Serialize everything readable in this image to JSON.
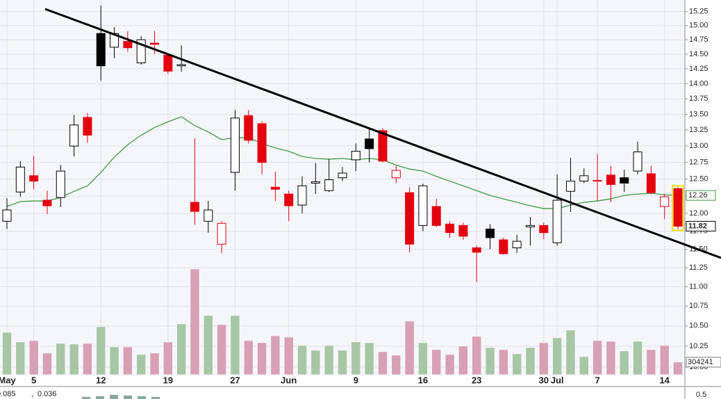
{
  "chart_data": {
    "type": "candlestick",
    "categories": [
      "May",
      null,
      "5",
      null,
      null,
      null,
      null,
      "12",
      null,
      null,
      null,
      null,
      "19",
      null,
      null,
      null,
      null,
      "27",
      null,
      null,
      null,
      "Jun",
      null,
      null,
      null,
      null,
      "9",
      null,
      null,
      null,
      null,
      "16",
      null,
      null,
      null,
      "23",
      null,
      null,
      null,
      null,
      "30",
      "Jul",
      null,
      null,
      "7",
      null,
      null,
      null,
      null,
      "14",
      null
    ],
    "open": [
      11.89,
      12.31,
      12.55,
      12.19,
      12.23,
      13.0,
      13.45,
      14.86,
      14.62,
      14.72,
      14.35,
      14.69,
      14.48,
      14.3,
      12.16,
      11.89,
      11.57,
      12.6,
      13.48,
      13.35,
      12.38,
      12.28,
      12.12,
      12.44,
      12.33,
      12.52,
      12.79,
      13.11,
      13.24,
      12.52,
      12.3,
      11.83,
      12.1,
      11.85,
      11.83,
      11.52,
      11.78,
      11.63,
      11.52,
      11.81,
      11.83,
      11.59,
      12.32,
      12.47,
      12.48,
      12.56,
      12.52,
      12.62,
      12.58,
      12.1,
      12.36
    ],
    "high": [
      12.22,
      12.77,
      12.85,
      12.33,
      12.71,
      13.49,
      13.52,
      15.36,
      14.97,
      14.9,
      14.81,
      14.9,
      14.51,
      14.65,
      13.12,
      12.18,
      11.89,
      13.57,
      13.57,
      13.39,
      12.61,
      12.33,
      12.54,
      12.74,
      12.8,
      12.68,
      13.04,
      13.28,
      13.28,
      12.7,
      12.38,
      12.43,
      12.21,
      11.89,
      11.87,
      11.55,
      11.85,
      11.66,
      11.7,
      11.95,
      11.87,
      12.57,
      12.82,
      12.66,
      12.88,
      12.7,
      12.64,
      13.07,
      12.7,
      12.28,
      12.38
    ],
    "low": [
      11.78,
      12.24,
      12.35,
      11.99,
      12.09,
      12.84,
      13.05,
      14.05,
      14.43,
      14.54,
      14.32,
      14.5,
      14.16,
      14.2,
      11.84,
      11.73,
      11.45,
      12.33,
      13.04,
      12.57,
      12.18,
      11.89,
      12.0,
      12.28,
      12.31,
      12.47,
      12.62,
      12.75,
      12.75,
      12.44,
      11.46,
      11.75,
      11.81,
      11.66,
      11.63,
      11.06,
      11.5,
      11.43,
      11.45,
      11.55,
      11.64,
      11.55,
      12.02,
      12.44,
      12.18,
      12.16,
      12.31,
      12.57,
      12.28,
      11.92,
      11.78
    ],
    "close": [
      12.05,
      12.68,
      12.47,
      12.11,
      12.62,
      13.33,
      13.17,
      14.3,
      14.86,
      14.61,
      14.75,
      14.67,
      14.21,
      14.32,
      12.03,
      12.05,
      11.86,
      13.44,
      13.09,
      12.75,
      12.35,
      12.11,
      12.4,
      12.46,
      12.49,
      12.59,
      12.92,
      12.96,
      12.77,
      12.63,
      11.57,
      12.4,
      11.83,
      11.73,
      11.68,
      11.46,
      11.66,
      11.44,
      11.61,
      11.83,
      11.73,
      12.19,
      12.47,
      12.55,
      12.47,
      12.42,
      12.44,
      12.91,
      12.3,
      12.24,
      11.82
    ],
    "volume": [
      1031000,
      794000,
      828000,
      524000,
      760000,
      744000,
      760000,
      1166000,
      676000,
      676000,
      490000,
      524000,
      794000,
      1234000,
      2569000,
      1437000,
      1217000,
      1437000,
      828000,
      777000,
      946000,
      913000,
      710000,
      592000,
      710000,
      592000,
      794000,
      777000,
      558000,
      473000,
      1301000,
      777000,
      608000,
      490000,
      693000,
      930000,
      659000,
      608000,
      507000,
      659000,
      777000,
      896000,
      1082000,
      439000,
      828000,
      811000,
      575000,
      811000,
      608000,
      710000,
      304241
    ],
    "moving_average": {
      "color": "#3f9a3f",
      "values": [
        12.1,
        12.17,
        12.18,
        12.18,
        12.23,
        12.32,
        12.4,
        12.6,
        12.83,
        13.02,
        13.17,
        13.29,
        13.38,
        13.46,
        13.32,
        13.22,
        13.1,
        13.13,
        13.13,
        13.04,
        12.97,
        12.92,
        12.84,
        12.81,
        12.8,
        12.81,
        12.79,
        12.81,
        12.79,
        12.71,
        12.65,
        12.62,
        12.54,
        12.47,
        12.4,
        12.33,
        12.26,
        12.21,
        12.16,
        12.11,
        12.07,
        12.07,
        12.12,
        12.16,
        12.18,
        12.21,
        12.26,
        12.28,
        12.29,
        12.27,
        12.26
      ]
    },
    "ylim": [
      9.95,
      15.45
    ],
    "log_scale": true,
    "grid": true,
    "yticks": [
      {
        "value": 10,
        "label": "10.00"
      },
      10.25,
      {
        "value": 10.5,
        "label": "10.50"
      },
      10.75,
      {
        "value": 11,
        "label": "11.00"
      },
      11.25,
      {
        "value": 11.5,
        "label": "11.50"
      },
      11.75,
      {
        "value": 12,
        "label": "12.00"
      },
      12.25,
      {
        "value": 12.5,
        "label": "12.50"
      },
      12.75,
      {
        "value": 13,
        "label": "13.00"
      },
      13.25,
      {
        "value": 13.5,
        "label": "13.50"
      },
      13.75,
      {
        "value": 14,
        "label": "14.00"
      },
      14.25,
      {
        "value": 14.5,
        "label": "14.50"
      },
      14.75,
      {
        "value": 15,
        "label": "15.00"
      },
      15.25
    ],
    "up_color": "#000000",
    "down_color": "#e3000f",
    "volume_up_color": "#a7c6a5",
    "volume_down_color": "#d7a0b4",
    "lower_panel": {
      "values": [
        0.085,
        0.036
      ],
      "colors": [
        "#cc1020",
        "#3a9a8a"
      ],
      "yticks": [
        0.5
      ]
    }
  }
}
